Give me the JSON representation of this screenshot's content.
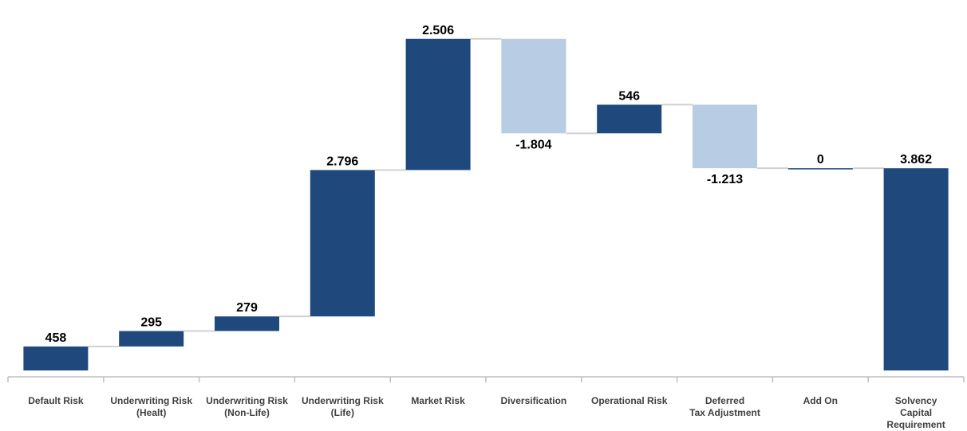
{
  "chart_data": {
    "type": "waterfall",
    "categories": [
      "Default Risk",
      "Underwriting Risk\n(Healt)",
      "Underwriting Risk\n(Non-Life)",
      "Underwriting Risk\n(Life)",
      "Market Risk",
      "Diversification",
      "Operational Risk",
      "Deferred\nTax Adjustment",
      "Add On",
      "Solvency\nCapital\nRequirement"
    ],
    "values": [
      458,
      295,
      279,
      2796,
      2506,
      -1804,
      546,
      -1213,
      0,
      3862
    ],
    "labels": [
      "458",
      "295",
      "279",
      "2.796",
      "2.506",
      "-1.804",
      "546",
      "-1.213",
      "0",
      "3.862"
    ],
    "total_index": 9,
    "ylim": [
      0,
      7000
    ],
    "colors": {
      "increase": "#1F497D",
      "decrease": "#B8CCE4",
      "total": "#1F497D",
      "connector": "#D0D0D0",
      "axis": "#BFBFBF",
      "value_label": "#000000",
      "category_label": "#404040"
    },
    "grid": false,
    "legend": "none"
  }
}
